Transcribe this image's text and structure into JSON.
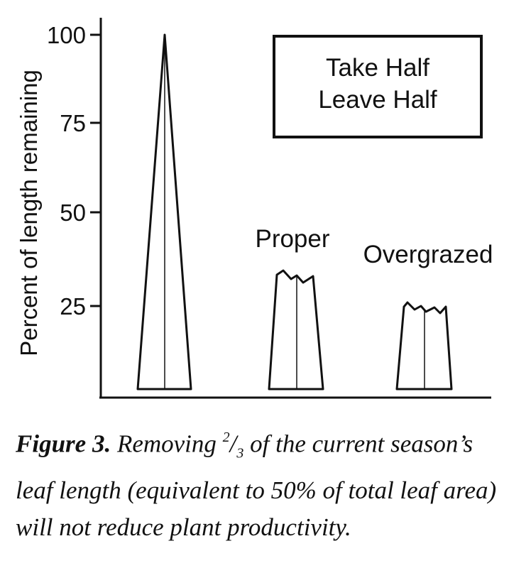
{
  "y_axis": {
    "label": "Percent of length remaining",
    "ticks": [
      "100",
      "75",
      "50",
      "25"
    ]
  },
  "legend_box": {
    "line1": "Take Half",
    "line2": "Leave Half"
  },
  "plants": [
    {
      "label": "",
      "height_percent": 100
    },
    {
      "label": "Proper",
      "height_percent": 33
    },
    {
      "label": "Overgrazed",
      "height_percent": 25
    }
  ],
  "caption": {
    "lead": "Figure 3.",
    "part1": "Removing",
    "numerator": "2",
    "slash": "/",
    "denominator": "3",
    "rest": "of the current season’s leaf length (equivalent to 50% of total leaf area) will not reduce plant productivity."
  }
}
